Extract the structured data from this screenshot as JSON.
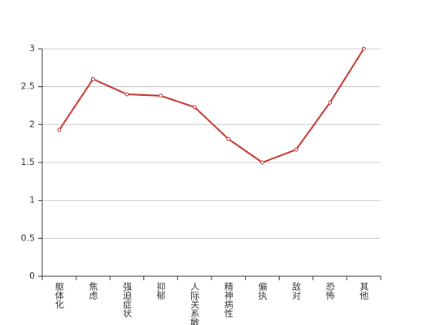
{
  "chart_data": {
    "type": "line",
    "categories": [
      "躯体化",
      "焦虑",
      "强迫症状",
      "抑郁",
      "人际关系敏感",
      "精神病性",
      "偏执",
      "敌对",
      "恐怖",
      "其他"
    ],
    "series": [
      {
        "color": "#c23531",
        "values": [
          1.93,
          2.6,
          2.4,
          2.38,
          2.23,
          1.81,
          1.5,
          1.67,
          2.29,
          3.0
        ]
      }
    ],
    "ylim": [
      0,
      3
    ],
    "yticks": [
      0,
      0.5,
      1,
      1.5,
      2,
      2.5,
      3
    ],
    "grid": true
  }
}
